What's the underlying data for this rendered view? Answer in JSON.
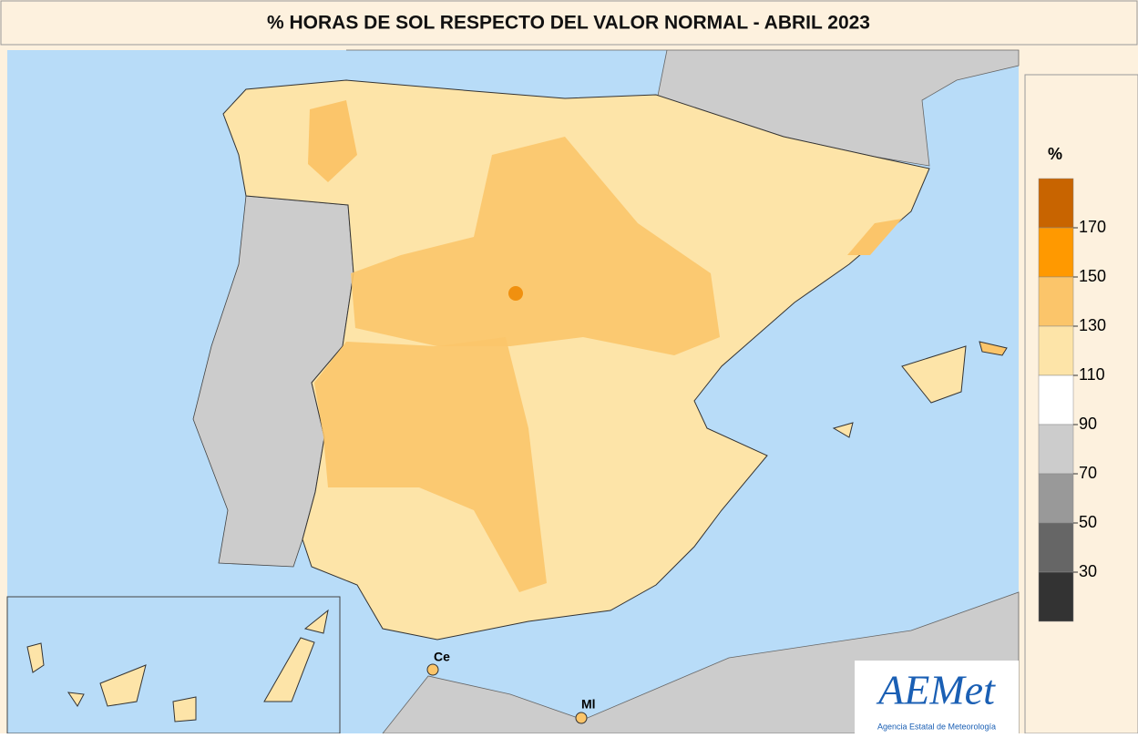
{
  "title": "% HORAS DE SOL RESPECTO DEL VALOR NORMAL - ABRIL 2023",
  "legend": {
    "title": "%",
    "ticks": [
      170,
      150,
      130,
      110,
      90,
      70,
      50,
      30
    ],
    "colors": [
      "#c86400",
      "#ff9900",
      "#fbc56a",
      "#fde4a8",
      "#ffffff",
      "#cccccc",
      "#999999",
      "#666666",
      "#333333"
    ]
  },
  "places": [
    {
      "label": "Ce"
    },
    {
      "label": "Ml"
    }
  ],
  "logo": {
    "text": "AEMet",
    "subtitle": "Agencia Estatal de Meteorología"
  }
}
